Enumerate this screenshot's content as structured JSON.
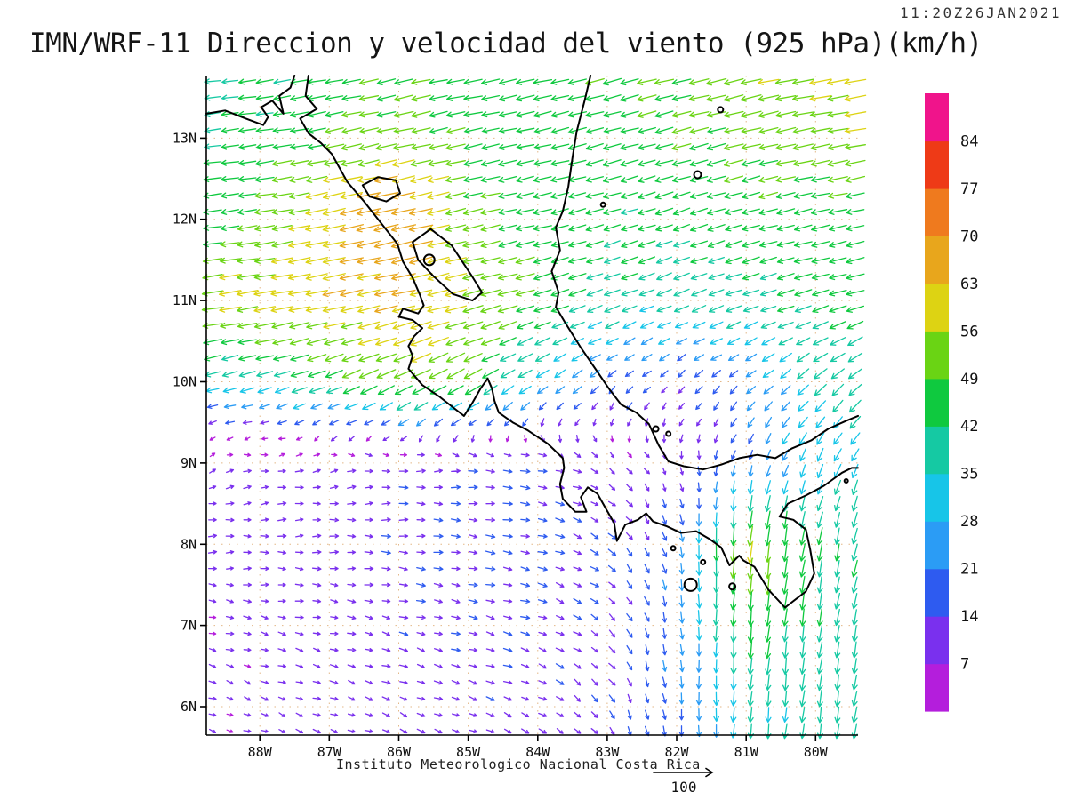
{
  "header": {
    "timestamp": "11:20Z26JAN2021",
    "title": "IMN/WRF-11 Direccion y velocidad del viento (925 hPa)(km/h)"
  },
  "footer": {
    "credit": "Instituto Meteorologico Nacional Costa Rica",
    "reference_arrow_label": "100"
  },
  "chart_data": {
    "type": "vector_field",
    "title": "IMN/WRF-11 Direccion y velocidad del viento (925 hPa)(km/h)",
    "valid_time": "11:20Z26JAN2021",
    "level": "925 hPa",
    "units": "km/h",
    "grid": "dotted lat/lon graticule every 1 degree",
    "legend_position": "right colorbar",
    "x_ticks": [
      "88W",
      "87W",
      "86W",
      "85W",
      "84W",
      "83W",
      "82W",
      "81W",
      "80W"
    ],
    "x_tick_lons": [
      -88,
      -87,
      -86,
      -85,
      -84,
      -83,
      -82,
      -81,
      -80
    ],
    "y_ticks": [
      "13N",
      "12N",
      "11N",
      "10N",
      "9N",
      "8N",
      "7N",
      "6N"
    ],
    "y_tick_lats": [
      13,
      12,
      11,
      10,
      9,
      8,
      7,
      6
    ],
    "lon_range": [
      -88.77,
      -79.39
    ],
    "lat_range": [
      5.65,
      13.77
    ],
    "reference": {
      "speed": 100,
      "label": "100"
    },
    "colorbar": {
      "units": "km/h",
      "levels": [
        7,
        14,
        21,
        28,
        35,
        42,
        49,
        56,
        63,
        70,
        77,
        84
      ],
      "colors": [
        "#b41edc",
        "#7a30ee",
        "#2e5bf0",
        "#2b9cf5",
        "#17c5e8",
        "#15c9a3",
        "#0fc93f",
        "#6ad414",
        "#ddd313",
        "#e8a61c",
        "#ef7a1e",
        "#ee3a17",
        "#f0148b"
      ]
    },
    "wind_grid": {
      "comment": "approximate 925hPa wind components read from the arrow field; u eastward km/h, v northward km/h; rows ordered by lats",
      "lats": [
        14,
        13,
        12,
        11,
        10,
        9,
        8,
        7,
        6,
        5.5
      ],
      "lons": [
        -89,
        -88,
        -87,
        -86,
        -85,
        -84,
        -83,
        -82,
        -81,
        -80,
        -79
      ],
      "u": [
        [
          -38,
          -40,
          -44,
          -46,
          -44,
          -46,
          -48,
          -50,
          -54,
          -58,
          -60
        ],
        [
          -40,
          -44,
          -48,
          -52,
          -46,
          -44,
          -44,
          -46,
          -50,
          -52,
          -55
        ],
        [
          -44,
          -48,
          -62,
          -70,
          -50,
          -44,
          -42,
          -42,
          -44,
          -45,
          -46
        ],
        [
          -56,
          -58,
          -60,
          -62,
          -56,
          -46,
          -38,
          -35,
          -38,
          -42,
          -45
        ],
        [
          -32,
          -36,
          -42,
          -50,
          -44,
          -26,
          -14,
          -10,
          -16,
          -28,
          -34
        ],
        [
          8,
          9,
          10,
          12,
          14,
          15,
          8,
          3,
          -5,
          -12,
          -15
        ],
        [
          10,
          11,
          12,
          13,
          14,
          15,
          12,
          5,
          -6,
          -8,
          -10
        ],
        [
          8,
          9,
          10,
          12,
          13,
          13,
          10,
          3,
          -4,
          -6,
          -8
        ],
        [
          7,
          8,
          9,
          10,
          11,
          11,
          8,
          2,
          -3,
          -5,
          -6
        ],
        [
          7,
          8,
          9,
          10,
          10,
          10,
          7,
          2,
          -3,
          -5,
          -6
        ]
      ],
      "v": [
        [
          -5,
          -6,
          -8,
          -10,
          -8,
          -10,
          -12,
          -12,
          -12,
          -10,
          -8
        ],
        [
          -5,
          -6,
          -10,
          -12,
          -10,
          -10,
          -12,
          -12,
          -12,
          -10,
          -10
        ],
        [
          -5,
          -8,
          -14,
          -16,
          -12,
          -10,
          -12,
          -14,
          -12,
          -10,
          -10
        ],
        [
          -8,
          -10,
          -12,
          -14,
          -14,
          -14,
          -14,
          -14,
          -13,
          -12,
          -12
        ],
        [
          -8,
          -10,
          -16,
          -24,
          -24,
          -18,
          -12,
          -10,
          -14,
          -24,
          -28
        ],
        [
          3,
          2,
          2,
          1,
          0,
          -2,
          -5,
          -8,
          -18,
          -28,
          -30
        ],
        [
          1,
          0,
          0,
          -1,
          -2,
          -3,
          -8,
          -20,
          -58,
          -42,
          -38
        ],
        [
          -2,
          -2,
          -2,
          -3,
          -3,
          -4,
          -8,
          -22,
          -45,
          -40,
          -36
        ],
        [
          -3,
          -3,
          -3,
          -4,
          -4,
          -5,
          -10,
          -20,
          -35,
          -38,
          -34
        ],
        [
          -3,
          -3,
          -4,
          -4,
          -5,
          -5,
          -10,
          -18,
          -32,
          -36,
          -32
        ]
      ]
    }
  },
  "map": {
    "coastlines": [
      [
        [
          -88.77,
          13.3
        ],
        [
          -88.5,
          13.34
        ],
        [
          -88.2,
          13.24
        ],
        [
          -87.95,
          13.16
        ],
        [
          -87.88,
          13.26
        ],
        [
          -87.98,
          13.38
        ],
        [
          -87.82,
          13.46
        ],
        [
          -87.66,
          13.3
        ],
        [
          -87.72,
          13.52
        ],
        [
          -87.56,
          13.62
        ],
        [
          -87.5,
          13.77
        ]
      ],
      [
        [
          -87.3,
          13.77
        ],
        [
          -87.34,
          13.52
        ],
        [
          -87.18,
          13.36
        ],
        [
          -87.42,
          13.24
        ],
        [
          -87.3,
          13.06
        ],
        [
          -87.12,
          12.94
        ],
        [
          -86.96,
          12.8
        ],
        [
          -86.74,
          12.46
        ],
        [
          -86.5,
          12.22
        ],
        [
          -86.26,
          11.96
        ],
        [
          -86.02,
          11.7
        ],
        [
          -85.94,
          11.48
        ],
        [
          -85.8,
          11.28
        ],
        [
          -85.7,
          11.08
        ],
        [
          -85.64,
          10.94
        ],
        [
          -85.72,
          10.84
        ],
        [
          -85.94,
          10.9
        ],
        [
          -86.0,
          10.8
        ],
        [
          -85.8,
          10.76
        ],
        [
          -85.66,
          10.66
        ],
        [
          -85.78,
          10.56
        ],
        [
          -85.86,
          10.44
        ],
        [
          -85.8,
          10.32
        ],
        [
          -85.86,
          10.16
        ],
        [
          -85.66,
          9.96
        ],
        [
          -85.42,
          9.82
        ],
        [
          -85.18,
          9.66
        ],
        [
          -85.06,
          9.58
        ],
        [
          -84.94,
          9.74
        ],
        [
          -84.82,
          9.92
        ],
        [
          -84.72,
          10.04
        ],
        [
          -84.66,
          9.92
        ],
        [
          -84.62,
          9.76
        ],
        [
          -84.56,
          9.62
        ],
        [
          -84.36,
          9.5
        ],
        [
          -84.14,
          9.4
        ],
        [
          -83.86,
          9.24
        ],
        [
          -83.64,
          9.06
        ],
        [
          -83.62,
          8.94
        ],
        [
          -83.68,
          8.74
        ],
        [
          -83.64,
          8.56
        ],
        [
          -83.46,
          8.4
        ],
        [
          -83.3,
          8.4
        ],
        [
          -83.38,
          8.58
        ],
        [
          -83.28,
          8.7
        ],
        [
          -83.14,
          8.62
        ],
        [
          -83.02,
          8.44
        ],
        [
          -82.9,
          8.26
        ],
        [
          -82.86,
          8.04
        ],
        [
          -82.74,
          8.24
        ],
        [
          -82.56,
          8.3
        ],
        [
          -82.44,
          8.38
        ],
        [
          -82.34,
          8.28
        ],
        [
          -82.14,
          8.22
        ],
        [
          -81.94,
          8.14
        ],
        [
          -81.72,
          8.16
        ],
        [
          -81.52,
          8.06
        ],
        [
          -81.36,
          7.96
        ],
        [
          -81.24,
          7.74
        ],
        [
          -81.1,
          7.86
        ],
        [
          -81.04,
          7.8
        ],
        [
          -80.88,
          7.72
        ],
        [
          -80.68,
          7.44
        ],
        [
          -80.44,
          7.22
        ],
        [
          -80.14,
          7.42
        ],
        [
          -80.02,
          7.64
        ],
        [
          -80.08,
          7.94
        ],
        [
          -80.14,
          8.18
        ],
        [
          -80.32,
          8.3
        ],
        [
          -80.52,
          8.34
        ],
        [
          -80.4,
          8.5
        ],
        [
          -80.14,
          8.6
        ],
        [
          -79.88,
          8.72
        ],
        [
          -79.62,
          8.88
        ],
        [
          -79.48,
          8.94
        ],
        [
          -79.39,
          8.94
        ]
      ],
      [
        [
          -83.24,
          13.77
        ],
        [
          -83.32,
          13.48
        ],
        [
          -83.44,
          13.08
        ],
        [
          -83.5,
          12.76
        ],
        [
          -83.56,
          12.4
        ],
        [
          -83.64,
          12.1
        ],
        [
          -83.74,
          11.9
        ],
        [
          -83.68,
          11.62
        ],
        [
          -83.8,
          11.36
        ],
        [
          -83.7,
          11.1
        ],
        [
          -83.74,
          10.92
        ],
        [
          -83.6,
          10.72
        ],
        [
          -83.38,
          10.42
        ],
        [
          -83.14,
          10.12
        ],
        [
          -82.98,
          9.92
        ],
        [
          -82.8,
          9.72
        ],
        [
          -82.58,
          9.62
        ],
        [
          -82.4,
          9.48
        ],
        [
          -82.26,
          9.22
        ],
        [
          -82.12,
          9.02
        ],
        [
          -81.9,
          8.96
        ],
        [
          -81.62,
          8.92
        ],
        [
          -81.36,
          8.98
        ],
        [
          -81.1,
          9.06
        ],
        [
          -80.84,
          9.1
        ],
        [
          -80.58,
          9.06
        ],
        [
          -80.34,
          9.18
        ],
        [
          -80.06,
          9.28
        ],
        [
          -79.82,
          9.42
        ],
        [
          -79.56,
          9.52
        ],
        [
          -79.39,
          9.58
        ]
      ]
    ],
    "lakes": [
      [
        [
          -85.8,
          11.72
        ],
        [
          -85.54,
          11.88
        ],
        [
          -85.24,
          11.68
        ],
        [
          -84.96,
          11.32
        ],
        [
          -84.8,
          11.1
        ],
        [
          -84.94,
          11.0
        ],
        [
          -85.22,
          11.08
        ],
        [
          -85.5,
          11.3
        ],
        [
          -85.72,
          11.5
        ],
        [
          -85.8,
          11.72
        ]
      ],
      [
        [
          -86.52,
          12.42
        ],
        [
          -86.3,
          12.52
        ],
        [
          -86.04,
          12.48
        ],
        [
          -85.98,
          12.32
        ],
        [
          -86.18,
          12.22
        ],
        [
          -86.42,
          12.28
        ],
        [
          -86.52,
          12.42
        ]
      ]
    ],
    "islands": [
      [
        -81.37,
        13.35,
        3
      ],
      [
        -81.7,
        12.55,
        4
      ],
      [
        -83.06,
        12.18,
        2.5
      ],
      [
        -85.56,
        11.5,
        6
      ],
      [
        -82.3,
        9.42,
        3
      ],
      [
        -82.12,
        9.36,
        2.5
      ],
      [
        -81.8,
        7.5,
        7
      ],
      [
        -81.2,
        7.48,
        3.5
      ],
      [
        -82.05,
        7.95,
        2.5
      ],
      [
        -81.62,
        7.78,
        2.5
      ],
      [
        -79.56,
        8.78,
        2
      ]
    ]
  }
}
